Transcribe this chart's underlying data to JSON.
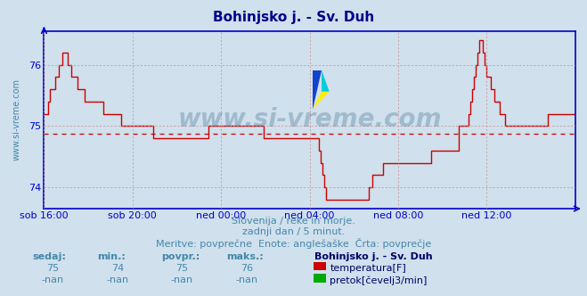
{
  "title": "Bohinjsko j. - Sv. Duh",
  "bg_color": "#d0e0ec",
  "plot_bg_color": "#d0e0ec",
  "line_color": "#cc0000",
  "avg_line_color": "#cc0000",
  "grid_color": "#cc8888",
  "axis_color": "#0000cc",
  "text_color": "#4488aa",
  "ylim": [
    73.65,
    76.55
  ],
  "yticks": [
    74,
    75,
    76
  ],
  "avg_value": 74.87,
  "subtitle1": "Slovenija / reke in morje.",
  "subtitle2": "zadnji dan / 5 minut.",
  "subtitle3": "Meritve: povprečne  Enote: anglešaške  Črta: povprečje",
  "legend_title": "Bohinjsko j. - Sv. Duh",
  "legend_items": [
    {
      "label": "temperatura[F]",
      "color": "#cc0000"
    },
    {
      "label": "pretok[čevelj3/min]",
      "color": "#00aa00"
    }
  ],
  "stats_headers": [
    "sedaj:",
    "min.:",
    "povpr.:",
    "maks.:"
  ],
  "stats_temp": [
    "75",
    "74",
    "75",
    "76"
  ],
  "stats_flow": [
    "-nan",
    "-nan",
    "-nan",
    "-nan"
  ],
  "xlabel_ticks": [
    "sob 16:00",
    "sob 20:00",
    "ned 00:00",
    "ned 04:00",
    "ned 08:00",
    "ned 12:00"
  ],
  "xtick_positions": [
    0,
    48,
    96,
    144,
    192,
    240
  ],
  "n_points": 289,
  "temperature_data": [
    75.2,
    75.2,
    75.4,
    75.6,
    75.6,
    75.6,
    75.8,
    75.8,
    76.0,
    76.0,
    76.2,
    76.2,
    76.2,
    76.0,
    76.0,
    75.8,
    75.8,
    75.8,
    75.6,
    75.6,
    75.6,
    75.6,
    75.4,
    75.4,
    75.4,
    75.4,
    75.4,
    75.4,
    75.4,
    75.4,
    75.4,
    75.4,
    75.2,
    75.2,
    75.2,
    75.2,
    75.2,
    75.2,
    75.2,
    75.2,
    75.2,
    75.2,
    75.0,
    75.0,
    75.0,
    75.0,
    75.0,
    75.0,
    75.0,
    75.0,
    75.0,
    75.0,
    75.0,
    75.0,
    75.0,
    75.0,
    75.0,
    75.0,
    75.0,
    74.8,
    74.8,
    74.8,
    74.8,
    74.8,
    74.8,
    74.8,
    74.8,
    74.8,
    74.8,
    74.8,
    74.8,
    74.8,
    74.8,
    74.8,
    74.8,
    74.8,
    74.8,
    74.8,
    74.8,
    74.8,
    74.8,
    74.8,
    74.8,
    74.8,
    74.8,
    74.8,
    74.8,
    74.8,
    74.8,
    75.0,
    75.0,
    75.0,
    75.0,
    75.0,
    75.0,
    75.0,
    75.0,
    75.0,
    75.0,
    75.0,
    75.0,
    75.0,
    75.0,
    75.0,
    75.0,
    75.0,
    75.0,
    75.0,
    75.0,
    75.0,
    75.0,
    75.0,
    75.0,
    75.0,
    75.0,
    75.0,
    75.0,
    75.0,
    75.0,
    74.8,
    74.8,
    74.8,
    74.8,
    74.8,
    74.8,
    74.8,
    74.8,
    74.8,
    74.8,
    74.8,
    74.8,
    74.8,
    74.8,
    74.8,
    74.8,
    74.8,
    74.8,
    74.8,
    74.8,
    74.8,
    74.8,
    74.8,
    74.8,
    74.8,
    74.8,
    74.8,
    74.8,
    74.8,
    74.8,
    74.6,
    74.4,
    74.2,
    74.0,
    73.8,
    73.8,
    73.8,
    73.8,
    73.8,
    73.8,
    73.8,
    73.8,
    73.8,
    73.8,
    73.8,
    73.8,
    73.8,
    73.8,
    73.8,
    73.8,
    73.8,
    73.8,
    73.8,
    73.8,
    73.8,
    73.8,
    73.8,
    74.0,
    74.0,
    74.2,
    74.2,
    74.2,
    74.2,
    74.2,
    74.2,
    74.4,
    74.4,
    74.4,
    74.4,
    74.4,
    74.4,
    74.4,
    74.4,
    74.4,
    74.4,
    74.4,
    74.4,
    74.4,
    74.4,
    74.4,
    74.4,
    74.4,
    74.4,
    74.4,
    74.4,
    74.4,
    74.4,
    74.4,
    74.4,
    74.4,
    74.4,
    74.6,
    74.6,
    74.6,
    74.6,
    74.6,
    74.6,
    74.6,
    74.6,
    74.6,
    74.6,
    74.6,
    74.6,
    74.6,
    74.6,
    74.6,
    75.0,
    75.0,
    75.0,
    75.0,
    75.0,
    75.2,
    75.4,
    75.6,
    75.8,
    76.0,
    76.2,
    76.4,
    76.4,
    76.2,
    76.0,
    75.8,
    75.8,
    75.6,
    75.6,
    75.4,
    75.4,
    75.4,
    75.2,
    75.2,
    75.2,
    75.0,
    75.0,
    75.0,
    75.0,
    75.0,
    75.0,
    75.0,
    75.0,
    75.0,
    75.0,
    75.0,
    75.0,
    75.0,
    75.0,
    75.0,
    75.0,
    75.0,
    75.0,
    75.0,
    75.0,
    75.0,
    75.0,
    75.0,
    75.2,
    75.2,
    75.2,
    75.2,
    75.2,
    75.2,
    75.2,
    75.2,
    75.2,
    75.2,
    75.2,
    75.2,
    75.2,
    75.2,
    75.2,
    75.2
  ]
}
